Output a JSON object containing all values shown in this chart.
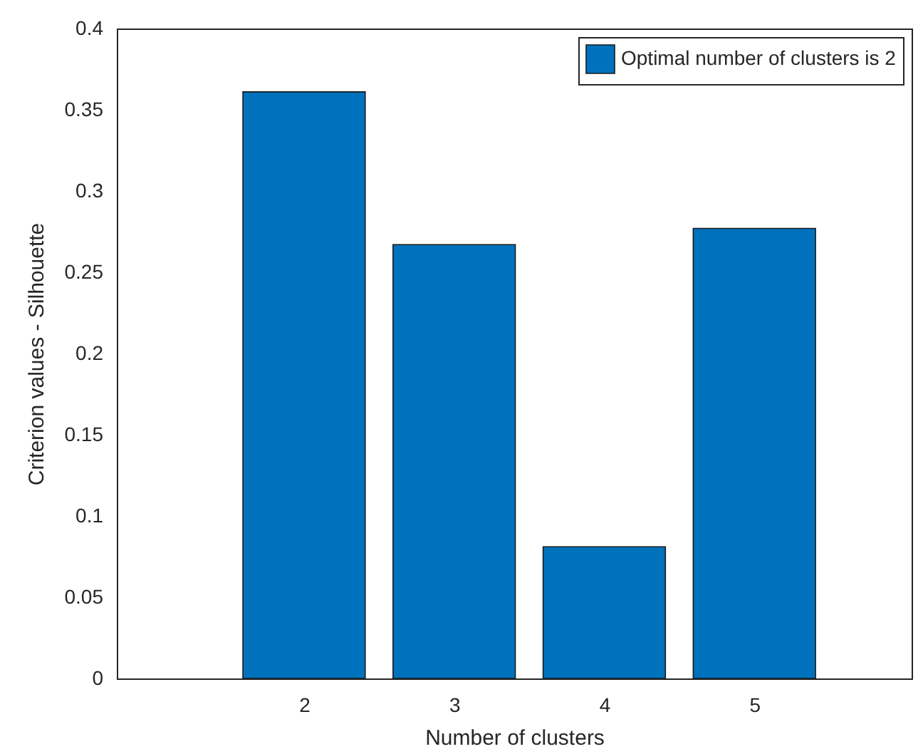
{
  "chart_data": {
    "type": "bar",
    "xlabel": "Number of clusters",
    "ylabel": "Criterion values - Silhouette",
    "x": [
      2,
      3,
      4,
      5
    ],
    "series": [
      {
        "name": "Optimal number of clusters is 2",
        "color": "#0072bd",
        "values": [
          0.361,
          0.267,
          0.081,
          0.277
        ]
      }
    ],
    "xlim": [
      0.8,
      6.0
    ],
    "xticks": [
      2,
      3,
      4,
      5
    ],
    "ylim": [
      0,
      0.4
    ],
    "yticks": [
      0,
      0.05,
      0.1,
      0.15,
      0.2,
      0.25,
      0.3,
      0.35,
      0.4
    ],
    "legend": "top right",
    "grid": false
  }
}
